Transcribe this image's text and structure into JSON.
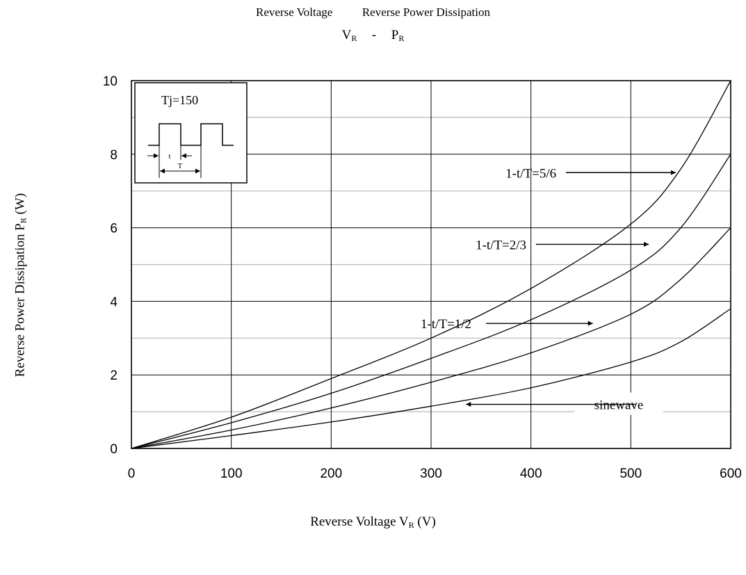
{
  "header": {
    "line1_left": "Reverse Voltage",
    "line1_right": "Reverse Power Dissipation",
    "line2_left_main": "V",
    "line2_left_sub": "R",
    "line2_sep": "-",
    "line2_right_main": "P",
    "line2_right_sub": "R"
  },
  "axes": {
    "x_title_main": "Reverse Voltage V",
    "x_title_sub": "R",
    "x_title_unit": " (V)",
    "y_title_main": "Reverse Power Dissipation P",
    "y_title_sub": "R",
    "y_title_unit": " (W)"
  },
  "inset": {
    "label": "Tj=150",
    "t_label": "t",
    "T_label": "T"
  },
  "chart_data": {
    "type": "line",
    "xlim": [
      0,
      600
    ],
    "ylim": [
      0,
      10
    ],
    "x_ticks": [
      0,
      100,
      200,
      300,
      400,
      500,
      600
    ],
    "y_ticks": [
      0,
      2,
      4,
      6,
      8,
      10
    ],
    "grid": true,
    "x_tick_labels": [
      "0",
      "100",
      "200",
      "300",
      "400",
      "500",
      "600"
    ],
    "y_tick_labels": [
      "0",
      "2",
      "4",
      "6",
      "8",
      "10"
    ],
    "series": [
      {
        "name": "1-t/T=5/6",
        "x": [
          0,
          100,
          200,
          300,
          400,
          500,
          550,
          600
        ],
        "y": [
          0,
          0.85,
          1.9,
          3.0,
          4.35,
          6.1,
          7.6,
          10.0
        ]
      },
      {
        "name": "1-t/T=2/3",
        "x": [
          0,
          100,
          200,
          300,
          400,
          500,
          550,
          600
        ],
        "y": [
          0,
          0.7,
          1.5,
          2.45,
          3.5,
          4.85,
          6.0,
          8.0
        ]
      },
      {
        "name": "1-t/T=1/2",
        "x": [
          0,
          100,
          200,
          300,
          400,
          500,
          550,
          600
        ],
        "y": [
          0,
          0.5,
          1.1,
          1.8,
          2.6,
          3.65,
          4.6,
          6.0
        ]
      },
      {
        "name": "sinewave",
        "x": [
          0,
          100,
          200,
          300,
          400,
          500,
          550,
          600
        ],
        "y": [
          0,
          0.35,
          0.72,
          1.15,
          1.65,
          2.35,
          2.9,
          3.8
        ]
      }
    ],
    "annotations": [
      {
        "text": "1-t/T=5/6",
        "x": 400,
        "y": 7.5
      },
      {
        "text": "1-t/T=2/3",
        "x": 370,
        "y": 5.55
      },
      {
        "text": "1-t/T=1/2",
        "x": 315,
        "y": 3.4
      },
      {
        "text": "sinewave",
        "x": 520,
        "y": 1.2
      }
    ]
  }
}
